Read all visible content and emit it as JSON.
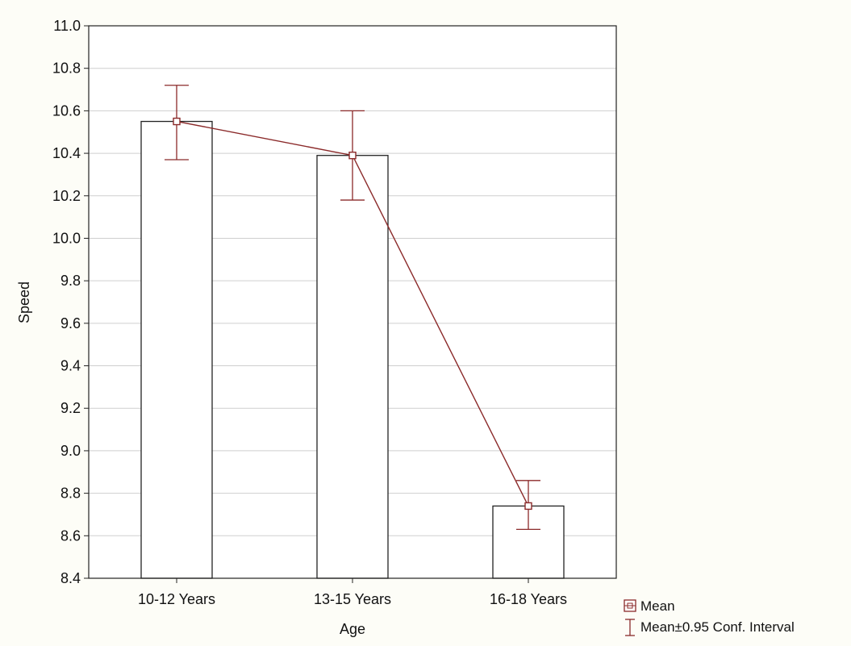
{
  "chart_data": {
    "type": "bar",
    "title": "",
    "xlabel": "Age",
    "ylabel": "Speed",
    "categories": [
      "10-12 Years",
      "13-15 Years",
      "16-18 Years"
    ],
    "series": [
      {
        "values": [
          10.55,
          10.39,
          8.74
        ],
        "ci_lower": [
          10.37,
          10.18,
          8.63
        ],
        "ci_upper": [
          10.72,
          10.6,
          8.86
        ]
      }
    ],
    "ylim": [
      8.4,
      11.0
    ],
    "yticks": [
      "8.4",
      "8.6",
      "8.8",
      "9.0",
      "9.2",
      "9.4",
      "9.6",
      "9.8",
      "10.0",
      "10.2",
      "10.4",
      "10.6",
      "10.8",
      "11.0"
    ],
    "grid": true,
    "legend": {
      "placement": "bottom-right",
      "entries": [
        "Mean",
        "Mean±0.95 Conf. Interval"
      ]
    },
    "colors": {
      "line": "#8b2a2a",
      "bar_stroke": "#222222",
      "bar_fill": "#ffffff",
      "grid": "#cfcfcf",
      "background": "#fdfdf7"
    }
  }
}
